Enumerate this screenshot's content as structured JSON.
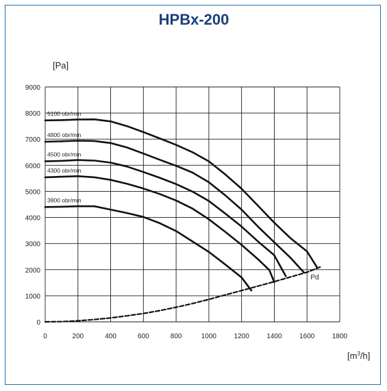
{
  "chart_data": {
    "type": "line",
    "title": "HPBx-200",
    "ylabel_unit": "[Pa]",
    "xlabel_unit_base": "[m",
    "xlabel_unit_sup": "3",
    "xlabel_unit_tail": "/h]",
    "xlim": [
      0,
      1800
    ],
    "ylim": [
      0,
      9000
    ],
    "x_ticks": [
      "0",
      "200",
      "400",
      "600",
      "800",
      "1000",
      "1200",
      "1400",
      "1600",
      "1800"
    ],
    "y_ticks": [
      "0",
      "1000",
      "2000",
      "3000",
      "4000",
      "5000",
      "6000",
      "7000",
      "8000",
      "9000"
    ],
    "grid": true,
    "series": [
      {
        "name": "5100 obr/min",
        "points": [
          [
            0,
            7720
          ],
          [
            100,
            7730
          ],
          [
            200,
            7750
          ],
          [
            300,
            7760
          ],
          [
            400,
            7680
          ],
          [
            500,
            7500
          ],
          [
            600,
            7270
          ],
          [
            700,
            7030
          ],
          [
            800,
            6780
          ],
          [
            900,
            6500
          ],
          [
            1000,
            6150
          ],
          [
            1100,
            5650
          ],
          [
            1200,
            5100
          ],
          [
            1300,
            4450
          ],
          [
            1400,
            3800
          ],
          [
            1500,
            3200
          ],
          [
            1600,
            2700
          ],
          [
            1660,
            2100
          ]
        ]
      },
      {
        "name": "4800 obr/min",
        "points": [
          [
            0,
            6900
          ],
          [
            100,
            6920
          ],
          [
            200,
            6940
          ],
          [
            300,
            6930
          ],
          [
            400,
            6850
          ],
          [
            500,
            6680
          ],
          [
            600,
            6450
          ],
          [
            700,
            6210
          ],
          [
            800,
            5980
          ],
          [
            900,
            5720
          ],
          [
            1000,
            5350
          ],
          [
            1100,
            4850
          ],
          [
            1200,
            4300
          ],
          [
            1300,
            3650
          ],
          [
            1400,
            3050
          ],
          [
            1500,
            2450
          ],
          [
            1580,
            1900
          ]
        ]
      },
      {
        "name": "4500 obr/min",
        "points": [
          [
            0,
            6150
          ],
          [
            100,
            6170
          ],
          [
            200,
            6200
          ],
          [
            300,
            6180
          ],
          [
            400,
            6100
          ],
          [
            500,
            5950
          ],
          [
            600,
            5740
          ],
          [
            700,
            5520
          ],
          [
            800,
            5280
          ],
          [
            900,
            4990
          ],
          [
            1000,
            4630
          ],
          [
            1100,
            4150
          ],
          [
            1200,
            3650
          ],
          [
            1300,
            3080
          ],
          [
            1400,
            2550
          ],
          [
            1470,
            1750
          ]
        ]
      },
      {
        "name": "4300 obr/min",
        "points": [
          [
            0,
            5540
          ],
          [
            100,
            5560
          ],
          [
            200,
            5580
          ],
          [
            300,
            5540
          ],
          [
            400,
            5440
          ],
          [
            500,
            5290
          ],
          [
            600,
            5110
          ],
          [
            700,
            4900
          ],
          [
            800,
            4650
          ],
          [
            900,
            4340
          ],
          [
            1000,
            3930
          ],
          [
            1100,
            3450
          ],
          [
            1200,
            2950
          ],
          [
            1300,
            2400
          ],
          [
            1370,
            1980
          ],
          [
            1400,
            1520
          ]
        ]
      },
      {
        "name": "3800 obr/min",
        "points": [
          [
            0,
            4400
          ],
          [
            100,
            4410
          ],
          [
            200,
            4430
          ],
          [
            300,
            4430
          ],
          [
            400,
            4300
          ],
          [
            500,
            4170
          ],
          [
            600,
            4020
          ],
          [
            700,
            3780
          ],
          [
            800,
            3480
          ],
          [
            900,
            3080
          ],
          [
            1000,
            2680
          ],
          [
            1100,
            2200
          ],
          [
            1200,
            1700
          ],
          [
            1260,
            1200
          ]
        ]
      },
      {
        "name": "Pd",
        "style": "dashed",
        "points": [
          [
            0,
            0
          ],
          [
            100,
            10
          ],
          [
            200,
            40
          ],
          [
            300,
            90
          ],
          [
            400,
            150
          ],
          [
            500,
            230
          ],
          [
            600,
            320
          ],
          [
            700,
            430
          ],
          [
            800,
            560
          ],
          [
            900,
            700
          ],
          [
            1000,
            860
          ],
          [
            1100,
            1030
          ],
          [
            1200,
            1200
          ],
          [
            1300,
            1370
          ],
          [
            1400,
            1540
          ],
          [
            1500,
            1720
          ],
          [
            1600,
            1900
          ],
          [
            1680,
            2100
          ]
        ]
      }
    ]
  }
}
